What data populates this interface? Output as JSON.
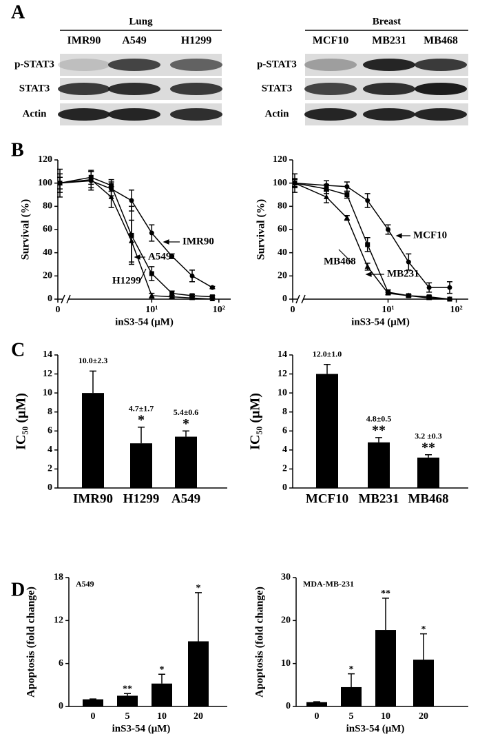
{
  "panel_labels": [
    "A",
    "B",
    "C",
    "D"
  ],
  "blots": [
    {
      "tissue": "Lung",
      "lanes": [
        "IMR90",
        "A549",
        "H1299"
      ],
      "rows": [
        "p-STAT3",
        "STAT3",
        "Actin"
      ]
    },
    {
      "tissue": "Breast",
      "lanes": [
        "MCF10",
        "MB231",
        "MB468"
      ],
      "rows": [
        "p-STAT3",
        "STAT3",
        "Actin"
      ]
    }
  ],
  "chart_data": [
    {
      "type": "line",
      "x_log": true,
      "x": [
        0,
        1.25,
        2.5,
        5,
        10,
        20,
        40,
        80
      ],
      "xlim": [
        0.4,
        150
      ],
      "xticks": [
        0,
        {
          "value": 10,
          "label": "10¹"
        },
        {
          "value": 100,
          "label": "10²"
        }
      ],
      "ylim": [
        0,
        120
      ],
      "yticks": [
        0,
        20,
        40,
        60,
        80,
        100,
        120
      ],
      "color": "#000000",
      "xlabel": "inS3-54 (μM)",
      "ylabel": "Survival (%)",
      "series": [
        {
          "name": "IMR90",
          "marker": "circle",
          "values": [
            100,
            102,
            95,
            85,
            57,
            37,
            20,
            10
          ],
          "errors": [
            5,
            8,
            6,
            9,
            7,
            2,
            5,
            1
          ]
        },
        {
          "name": "A549",
          "marker": "square",
          "values": [
            100,
            105,
            98,
            55,
            22,
            5,
            3,
            2
          ],
          "errors": [
            12,
            6,
            5,
            25,
            6,
            2,
            1,
            1
          ]
        },
        {
          "name": "H1299",
          "marker": "triangle",
          "values": [
            100,
            103,
            88,
            50,
            3,
            2,
            1,
            0
          ],
          "errors": [
            8,
            7,
            9,
            18,
            2,
            1,
            1,
            0
          ]
        }
      ]
    },
    {
      "type": "line",
      "x_log": true,
      "x": [
        0,
        1.25,
        2.5,
        5,
        10,
        20,
        40,
        80
      ],
      "xlim": [
        0.4,
        150
      ],
      "xticks": [
        0,
        {
          "value": 10,
          "label": "10¹"
        },
        {
          "value": 100,
          "label": "10²"
        }
      ],
      "ylim": [
        0,
        120
      ],
      "yticks": [
        0,
        20,
        40,
        60,
        80,
        100,
        120
      ],
      "color": "#000000",
      "xlabel": "inS3-54 (μM)",
      "ylabel": "Survival (%)",
      "series": [
        {
          "name": "MCF10",
          "marker": "circle",
          "values": [
            100,
            98,
            97,
            85,
            60,
            32,
            10,
            10
          ],
          "errors": [
            8,
            4,
            4,
            6,
            4,
            7,
            4,
            5
          ]
        },
        {
          "name": "MB231",
          "marker": "square",
          "values": [
            100,
            95,
            90,
            47,
            6,
            3,
            2,
            0
          ],
          "errors": [
            4,
            4,
            3,
            6,
            2,
            1,
            1,
            0
          ]
        },
        {
          "name": "MB468",
          "marker": "triangle",
          "values": [
            100,
            88,
            70,
            28,
            5,
            3,
            1,
            0
          ],
          "errors": [
            3,
            5,
            2,
            3,
            1,
            1,
            1,
            0
          ]
        }
      ]
    },
    {
      "type": "bar",
      "categories": [
        "IMR90",
        "H1299",
        "A549"
      ],
      "values": [
        10.0,
        4.7,
        5.4
      ],
      "errors": [
        2.3,
        1.7,
        0.6
      ],
      "value_labels": [
        "10.0±2.3",
        "4.7±1.7",
        "5.4±0.6"
      ],
      "significance": [
        null,
        "*",
        "*"
      ],
      "ylim": [
        0,
        14
      ],
      "yticks": [
        0,
        2,
        4,
        6,
        8,
        10,
        12,
        14
      ],
      "ylabel": "IC₅₀ (μM)",
      "color": "#000000"
    },
    {
      "type": "bar",
      "categories": [
        "MCF10",
        "MB231",
        "MB468"
      ],
      "values": [
        12.0,
        4.8,
        3.2
      ],
      "errors": [
        1.0,
        0.5,
        0.3
      ],
      "value_labels": [
        "12.0±1.0",
        "4.8±0.5",
        "3.2 ±0.3"
      ],
      "significance": [
        null,
        "**",
        "**"
      ],
      "ylim": [
        0,
        14
      ],
      "yticks": [
        0,
        2,
        4,
        6,
        8,
        10,
        12,
        14
      ],
      "ylabel": "IC₅₀ (μM)",
      "color": "#000000"
    },
    {
      "type": "bar",
      "title": "A549",
      "categories": [
        "0",
        "5",
        "10",
        "20"
      ],
      "values": [
        1.0,
        1.5,
        3.2,
        9.1
      ],
      "errors": [
        0.05,
        0.3,
        1.3,
        6.8
      ],
      "significance": [
        null,
        "**",
        "*",
        "*"
      ],
      "ylim": [
        0,
        18
      ],
      "yticks": [
        0,
        6,
        12,
        18
      ],
      "xlabel": "inS3-54 (μM)",
      "ylabel": "Apoptosis (fold change)",
      "color": "#000000"
    },
    {
      "type": "bar",
      "title": "MDA-MB-231",
      "categories": [
        "0",
        "5",
        "10",
        "20"
      ],
      "values": [
        1.0,
        4.5,
        17.8,
        10.9
      ],
      "errors": [
        0.1,
        3.1,
        7.4,
        6.0
      ],
      "significance": [
        null,
        "*",
        "**",
        "*"
      ],
      "ylim": [
        0,
        30
      ],
      "yticks": [
        0,
        10,
        20,
        30
      ],
      "xlabel": "inS3-54 (μM)",
      "ylabel": "Apoptosis (fold change)",
      "color": "#000000"
    }
  ]
}
